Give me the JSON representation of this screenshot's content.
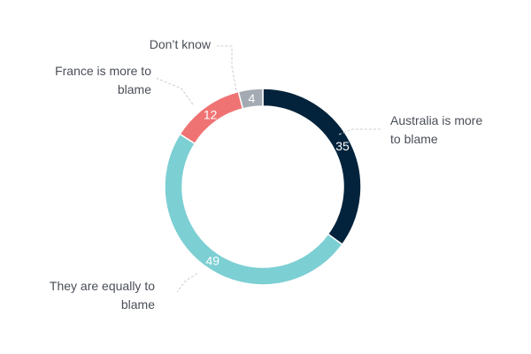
{
  "chart_data": {
    "type": "pie",
    "title": "",
    "categories": [
      "Australia is more to blame",
      "They are equally to blame",
      "France is more to blame",
      "Don’t know"
    ],
    "values": [
      35,
      49,
      12,
      4
    ],
    "colors": [
      "#02233b",
      "#7ccfd3",
      "#f07373",
      "#a3aab1"
    ],
    "category_lines": [
      [
        "Australia is more",
        "to blame"
      ],
      [
        "They are equally to",
        "blame"
      ],
      [
        "France is more to",
        "blame"
      ],
      [
        "Don’t know"
      ]
    ],
    "donut": true,
    "legend": "none",
    "data_labels": true
  }
}
